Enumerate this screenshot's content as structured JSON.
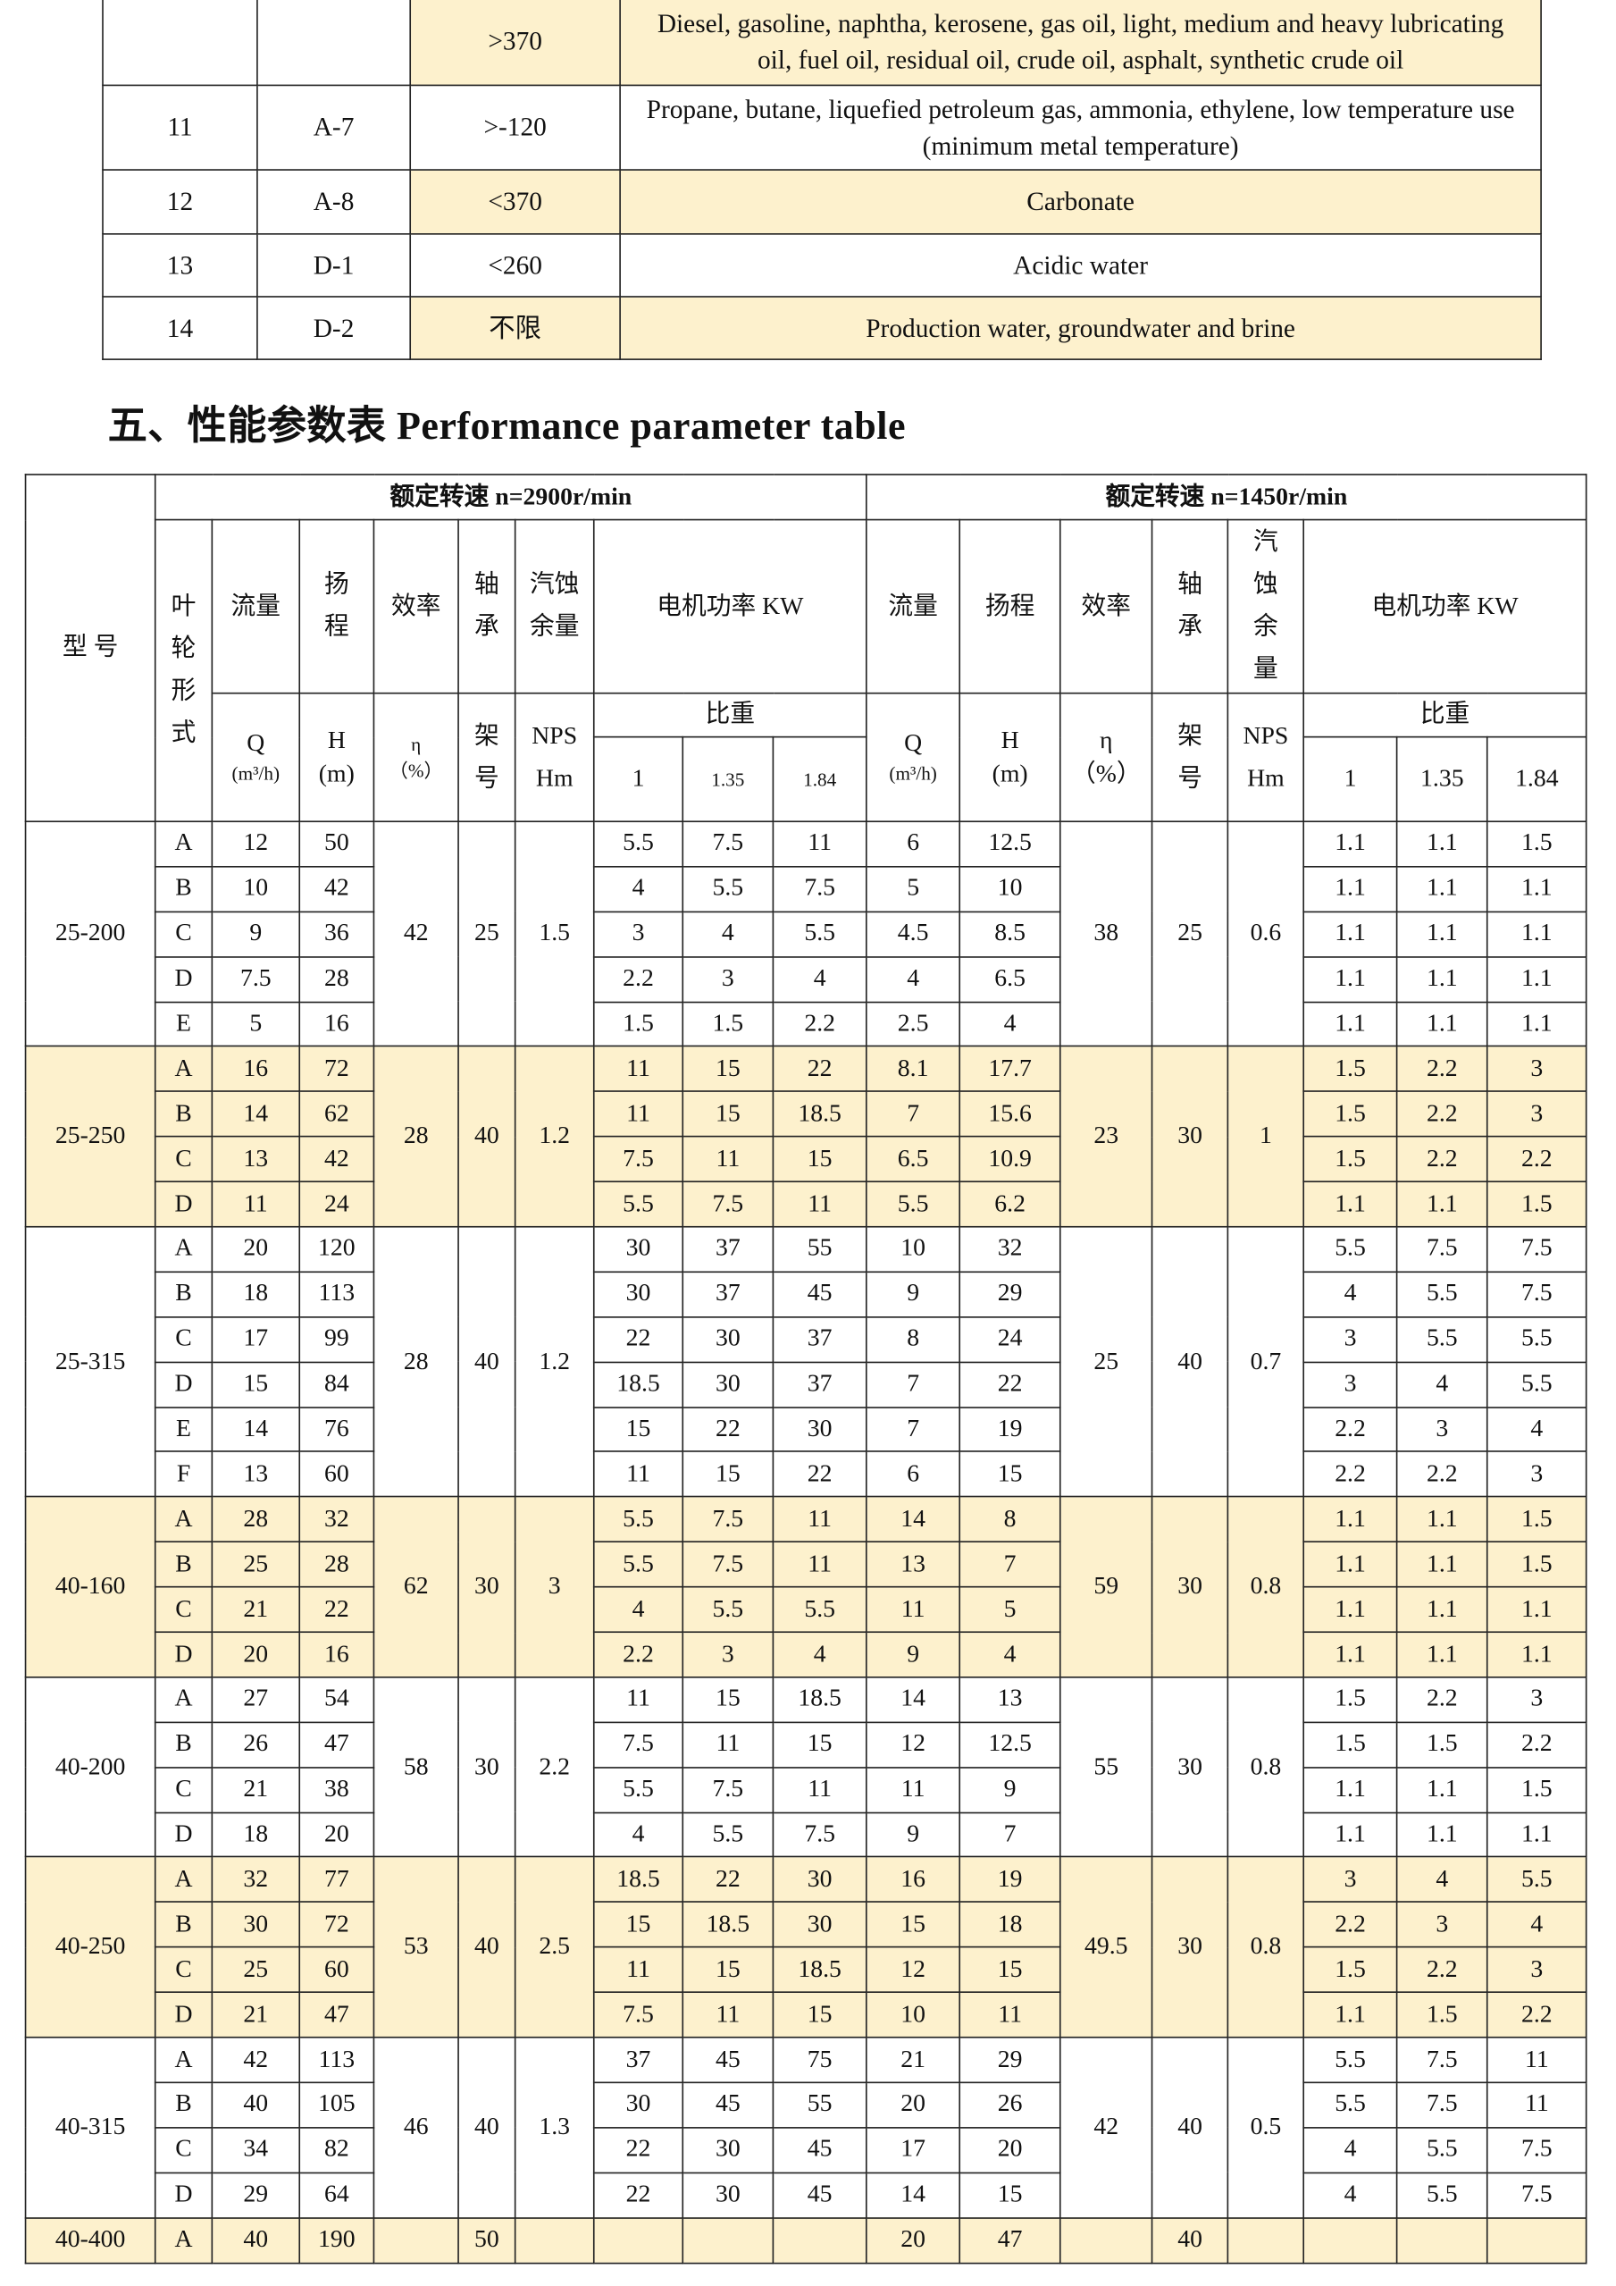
{
  "media_table": {
    "rows": [
      {
        "no": "",
        "code": "",
        "temp": ">370",
        "medium": "Diesel, gasoline, naphtha, kerosene, gas oil, light, medium and heavy lubricating oil, fuel oil, residual oil, crude oil, asphalt, synthetic crude oil",
        "highlight": true
      },
      {
        "no": "11",
        "code": "A-7",
        "temp": ">-120",
        "medium": "Propane, butane, liquefied petroleum gas, ammonia, ethylene, low temperature use (minimum metal temperature)",
        "highlight": false
      },
      {
        "no": "12",
        "code": "A-8",
        "temp": "<370",
        "medium": "Carbonate",
        "highlight": true
      },
      {
        "no": "13",
        "code": "D-1",
        "temp": "<260",
        "medium": "Acidic water",
        "highlight": false
      },
      {
        "no": "14",
        "code": "D-2",
        "temp": "不限",
        "medium": "Production water, groundwater and brine",
        "highlight": true
      }
    ]
  },
  "section_title": "五、性能参数表 Performance parameter table",
  "perf_table": {
    "headers": {
      "model": "型 号",
      "speed_2900": "额定转速 n=2900r/min",
      "speed_1450": "额定转速 n=1450r/min",
      "impeller": "叶轮形式",
      "flow": "流量",
      "head": "扬程",
      "efficiency": "效率",
      "bearing": "轴承",
      "npsh": "汽蚀余量",
      "motor_power": "电机功率 KW",
      "q_unit": "Q",
      "q_unit2": "(m³/h)",
      "h_unit": "H",
      "h_unit2": "(m)",
      "eta_unit": "η",
      "eta_unit2": "（%）",
      "frame": "架号",
      "npsh_unit": "NPSHm",
      "specific_gravity": "比重",
      "sg_values": [
        "1",
        "1.35",
        "1.84"
      ]
    },
    "highlight_color": "#fdf1cd",
    "groups": [
      {
        "model": "25-200",
        "highlight": false,
        "eff": "42",
        "bearing": "25",
        "npsh": "1.5",
        "eff2": "38",
        "bearing2": "25",
        "npsh2": "0.6",
        "rows": [
          [
            "A",
            "12",
            "50",
            "5.5",
            "7.5",
            "11",
            "6",
            "12.5",
            "1.1",
            "1.1",
            "1.5"
          ],
          [
            "B",
            "10",
            "42",
            "4",
            "5.5",
            "7.5",
            "5",
            "10",
            "1.1",
            "1.1",
            "1.1"
          ],
          [
            "C",
            "9",
            "36",
            "3",
            "4",
            "5.5",
            "4.5",
            "8.5",
            "1.1",
            "1.1",
            "1.1"
          ],
          [
            "D",
            "7.5",
            "28",
            "2.2",
            "3",
            "4",
            "4",
            "6.5",
            "1.1",
            "1.1",
            "1.1"
          ],
          [
            "E",
            "5",
            "16",
            "1.5",
            "1.5",
            "2.2",
            "2.5",
            "4",
            "1.1",
            "1.1",
            "1.1"
          ]
        ]
      },
      {
        "model": "25-250",
        "highlight": true,
        "eff": "28",
        "bearing": "40",
        "npsh": "1.2",
        "eff2": "23",
        "bearing2": "30",
        "npsh2": "1",
        "rows": [
          [
            "A",
            "16",
            "72",
            "11",
            "15",
            "22",
            "8.1",
            "17.7",
            "1.5",
            "2.2",
            "3"
          ],
          [
            "B",
            "14",
            "62",
            "11",
            "15",
            "18.5",
            "7",
            "15.6",
            "1.5",
            "2.2",
            "3"
          ],
          [
            "C",
            "13",
            "42",
            "7.5",
            "11",
            "15",
            "6.5",
            "10.9",
            "1.5",
            "2.2",
            "2.2"
          ],
          [
            "D",
            "11",
            "24",
            "5.5",
            "7.5",
            "11",
            "5.5",
            "6.2",
            "1.1",
            "1.1",
            "1.5"
          ]
        ]
      },
      {
        "model": "25-315",
        "highlight": false,
        "eff": "28",
        "bearing": "40",
        "npsh": "1.2",
        "eff2": "25",
        "bearing2": "40",
        "npsh2": "0.7",
        "rows": [
          [
            "A",
            "20",
            "120",
            "30",
            "37",
            "55",
            "10",
            "32",
            "5.5",
            "7.5",
            "7.5"
          ],
          [
            "B",
            "18",
            "113",
            "30",
            "37",
            "45",
            "9",
            "29",
            "4",
            "5.5",
            "7.5"
          ],
          [
            "C",
            "17",
            "99",
            "22",
            "30",
            "37",
            "8",
            "24",
            "3",
            "5.5",
            "5.5"
          ],
          [
            "D",
            "15",
            "84",
            "18.5",
            "30",
            "37",
            "7",
            "22",
            "3",
            "4",
            "5.5"
          ],
          [
            "E",
            "14",
            "76",
            "15",
            "22",
            "30",
            "7",
            "19",
            "2.2",
            "3",
            "4"
          ],
          [
            "F",
            "13",
            "60",
            "11",
            "15",
            "22",
            "6",
            "15",
            "2.2",
            "2.2",
            "3"
          ]
        ]
      },
      {
        "model": "40-160",
        "highlight": true,
        "eff": "62",
        "bearing": "30",
        "npsh": "3",
        "eff2": "59",
        "bearing2": "30",
        "npsh2": "0.8",
        "rows": [
          [
            "A",
            "28",
            "32",
            "5.5",
            "7.5",
            "11",
            "14",
            "8",
            "1.1",
            "1.1",
            "1.5"
          ],
          [
            "B",
            "25",
            "28",
            "5.5",
            "7.5",
            "11",
            "13",
            "7",
            "1.1",
            "1.1",
            "1.5"
          ],
          [
            "C",
            "21",
            "22",
            "4",
            "5.5",
            "5.5",
            "11",
            "5",
            "1.1",
            "1.1",
            "1.1"
          ],
          [
            "D",
            "20",
            "16",
            "2.2",
            "3",
            "4",
            "9",
            "4",
            "1.1",
            "1.1",
            "1.1"
          ]
        ]
      },
      {
        "model": "40-200",
        "highlight": false,
        "eff": "58",
        "bearing": "30",
        "npsh": "2.2",
        "eff2": "55",
        "bearing2": "30",
        "npsh2": "0.8",
        "rows": [
          [
            "A",
            "27",
            "54",
            "11",
            "15",
            "18.5",
            "14",
            "13",
            "1.5",
            "2.2",
            "3"
          ],
          [
            "B",
            "26",
            "47",
            "7.5",
            "11",
            "15",
            "12",
            "12.5",
            "1.5",
            "1.5",
            "2.2"
          ],
          [
            "C",
            "21",
            "38",
            "5.5",
            "7.5",
            "11",
            "11",
            "9",
            "1.1",
            "1.1",
            "1.5"
          ],
          [
            "D",
            "18",
            "20",
            "4",
            "5.5",
            "7.5",
            "9",
            "7",
            "1.1",
            "1.1",
            "1.1"
          ]
        ]
      },
      {
        "model": "40-250",
        "highlight": true,
        "eff": "53",
        "bearing": "40",
        "npsh": "2.5",
        "eff2": "49.5",
        "bearing2": "30",
        "npsh2": "0.8",
        "rows": [
          [
            "A",
            "32",
            "77",
            "18.5",
            "22",
            "30",
            "16",
            "19",
            "3",
            "4",
            "5.5"
          ],
          [
            "B",
            "30",
            "72",
            "15",
            "18.5",
            "30",
            "15",
            "18",
            "2.2",
            "3",
            "4"
          ],
          [
            "C",
            "25",
            "60",
            "11",
            "15",
            "18.5",
            "12",
            "15",
            "1.5",
            "2.2",
            "3"
          ],
          [
            "D",
            "21",
            "47",
            "7.5",
            "11",
            "15",
            "10",
            "11",
            "1.1",
            "1.5",
            "2.2"
          ]
        ]
      },
      {
        "model": "40-315",
        "highlight": false,
        "eff": "46",
        "bearing": "40",
        "npsh": "1.3",
        "eff2": "42",
        "bearing2": "40",
        "npsh2": "0.5",
        "rows": [
          [
            "A",
            "42",
            "113",
            "37",
            "45",
            "75",
            "21",
            "29",
            "5.5",
            "7.5",
            "11"
          ],
          [
            "B",
            "40",
            "105",
            "30",
            "45",
            "55",
            "20",
            "26",
            "5.5",
            "7.5",
            "11"
          ],
          [
            "C",
            "34",
            "82",
            "22",
            "30",
            "45",
            "17",
            "20",
            "4",
            "5.5",
            "7.5"
          ],
          [
            "D",
            "29",
            "64",
            "22",
            "30",
            "45",
            "14",
            "15",
            "4",
            "5.5",
            "7.5"
          ]
        ]
      },
      {
        "model": "40-400",
        "highlight": true,
        "eff": "",
        "bearing": "50",
        "npsh": "",
        "eff2": "",
        "bearing2": "40",
        "npsh2": "",
        "rows": [
          [
            "A",
            "40",
            "190",
            "",
            "",
            "",
            "20",
            "47",
            "",
            "",
            ""
          ]
        ]
      }
    ]
  }
}
